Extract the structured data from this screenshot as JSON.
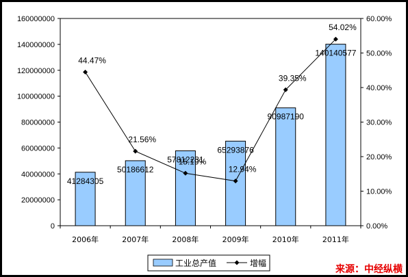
{
  "chart_data": {
    "type": "bar+line",
    "categories": [
      "2006年",
      "2007年",
      "2008年",
      "2009年",
      "2010年",
      "2011年"
    ],
    "series": [
      {
        "name": "工业总产值",
        "type": "bar",
        "axis": "left",
        "values": [
          41284305,
          50186612,
          57812231,
          65293876,
          90987190,
          140140577
        ],
        "labels": [
          "41284305",
          "50186612",
          "57812231",
          "65293876",
          "90987190",
          "140140577"
        ],
        "color": "#99ccff"
      },
      {
        "name": "增幅",
        "type": "line",
        "axis": "right",
        "values": [
          44.47,
          21.56,
          15.19,
          12.94,
          39.35,
          54.02
        ],
        "labels": [
          "44.47%",
          "21.56%",
          "15.19%",
          "12.94%",
          "39.35%",
          "54.02%"
        ],
        "color": "#000000"
      }
    ],
    "y_left": {
      "ylim": [
        0,
        160000000
      ],
      "ticks": [
        "0",
        "20000000",
        "40000000",
        "60000000",
        "80000000",
        "100000000",
        "120000000",
        "140000000",
        "160000000"
      ]
    },
    "y_right": {
      "ylim": [
        0,
        60
      ],
      "ticks": [
        "0.00%",
        "10.00%",
        "20.00%",
        "30.00%",
        "40.00%",
        "50.00%",
        "60.00%"
      ]
    },
    "legend": {
      "position": "bottom",
      "items": [
        "工业总产值",
        "增幅"
      ]
    },
    "source": "来源：中经纵横"
  }
}
